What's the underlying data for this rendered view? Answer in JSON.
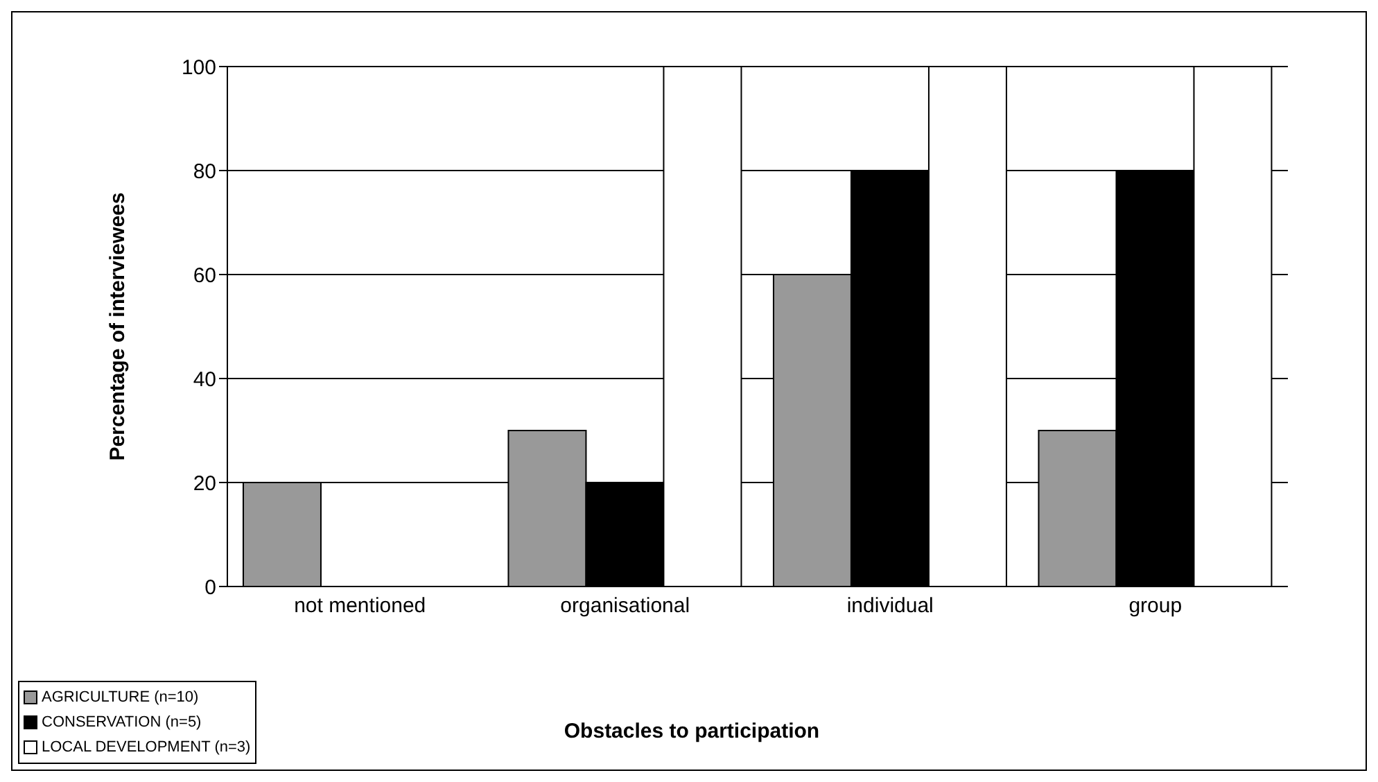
{
  "chart_data": {
    "type": "bar",
    "xlabel": "Obstacles to participation",
    "ylabel": "Percentage of interviewees",
    "categories": [
      "not mentioned",
      "organisational",
      "individual",
      "group"
    ],
    "series": [
      {
        "name": "AGRICULTURE (n=10)",
        "color": "#999999",
        "values": [
          20,
          30,
          60,
          30
        ]
      },
      {
        "name": "CONSERVATION (n=5)",
        "color": "#000000",
        "values": [
          0,
          20,
          80,
          80
        ]
      },
      {
        "name": "LOCAL DEVELOPMENT (n=3)",
        "color": "#ffffff",
        "values": [
          0,
          100,
          100,
          100
        ]
      }
    ],
    "ylim": [
      0,
      100
    ],
    "yticks": [
      0,
      20,
      40,
      60,
      80,
      100
    ],
    "grid": "y",
    "legend": "bottom left"
  }
}
